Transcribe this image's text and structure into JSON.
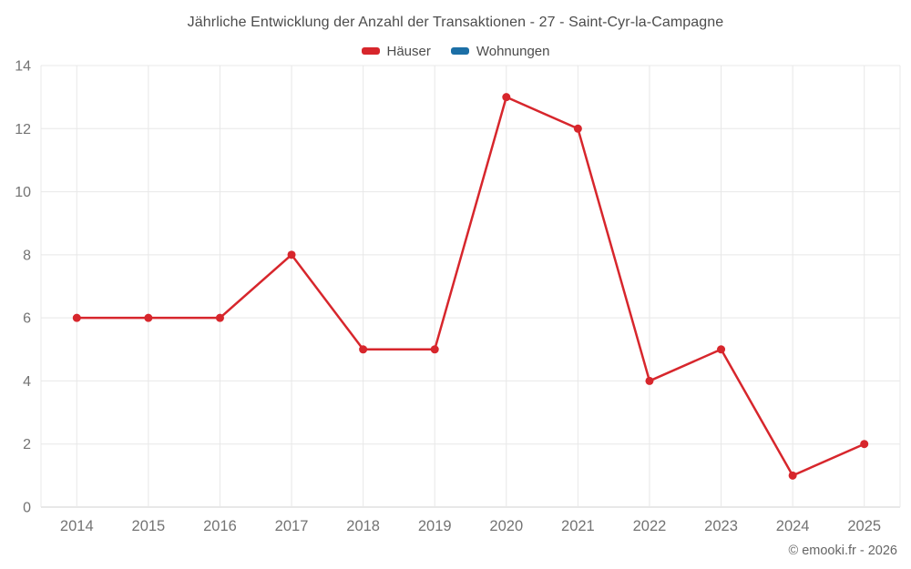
{
  "chart_data": {
    "type": "line",
    "title": "Jährliche Entwicklung der Anzahl der Transaktionen - 27 - Saint-Cyr-la-Campagne",
    "categories": [
      "2014",
      "2015",
      "2016",
      "2017",
      "2018",
      "2019",
      "2020",
      "2021",
      "2022",
      "2023",
      "2024",
      "2025"
    ],
    "series": [
      {
        "name": "Häuser",
        "color": "#d7262c",
        "values": [
          6,
          6,
          6,
          8,
          5,
          5,
          13,
          12,
          4,
          5,
          1,
          2
        ]
      },
      {
        "name": "Wohnungen",
        "color": "#1c6fa6",
        "values": []
      }
    ],
    "ylim": [
      0,
      14
    ],
    "ytick_step": 2,
    "grid": true,
    "legend_position": "top",
    "grid_color": "#e8e8e8",
    "axis_color": "#d2d2d2",
    "tick_color": "#737373",
    "marker_radius": 4.5,
    "line_width": 2.5
  },
  "footer": {
    "credit": "© emooki.fr - 2026"
  }
}
